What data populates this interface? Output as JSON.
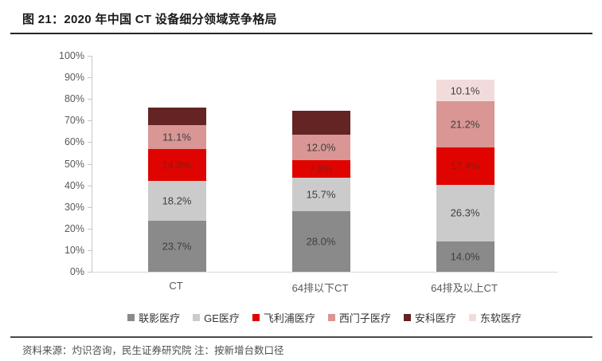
{
  "header": {
    "title": "图 21：2020 年中国 CT 设备细分领域竞争格局"
  },
  "footer": {
    "source": "资料来源：灼识咨询，民生证券研究院 注：按新增台数口径"
  },
  "chart_data": {
    "type": "bar",
    "stacked": true,
    "title": "2020 年中国 CT 设备细分领域竞争格局",
    "categories": [
      "CT",
      "64排以下CT",
      "64排及以上CT"
    ],
    "series": [
      {
        "name": "联影医疗",
        "color": "#8a8a8a",
        "label_color": "#3f3f3f",
        "values": [
          23.7,
          28.0,
          14.0
        ],
        "labels": [
          "23.7%",
          "28.0%",
          "14.0%"
        ]
      },
      {
        "name": "GE医疗",
        "color": "#cbcbcb",
        "label_color": "#3f3f3f",
        "values": [
          18.2,
          15.7,
          26.3
        ],
        "labels": [
          "18.2%",
          "15.7%",
          "26.3%"
        ]
      },
      {
        "name": "飞利浦医疗",
        "color": "#e00400",
        "label_color": "#8b1a12",
        "values": [
          14.8,
          7.8,
          17.4
        ],
        "labels": [
          "14.8%",
          "7.8%",
          "17.4%"
        ]
      },
      {
        "name": "西门子医疗",
        "color": "#d99694",
        "label_color": "#3f3f3f",
        "values": [
          11.1,
          12.0,
          21.2
        ],
        "labels": [
          "11.1%",
          "12.0%",
          "21.2%"
        ]
      },
      {
        "name": "安科医疗",
        "color": "#632423",
        "label_color": "#3f3f3f",
        "values": [
          8.2,
          11.1,
          0
        ],
        "labels": [
          "",
          "",
          ""
        ]
      },
      {
        "name": "东软医疗",
        "color": "#f2dcdb",
        "label_color": "#3f3f3f",
        "values": [
          0,
          0,
          10.1
        ],
        "labels": [
          "",
          "",
          "10.1%"
        ]
      }
    ],
    "ylabel": "",
    "xlabel": "",
    "ylim": [
      0,
      100
    ],
    "yticks": [
      "100%",
      "90%",
      "80%",
      "70%",
      "60%",
      "50%",
      "40%",
      "30%",
      "20%",
      "10%",
      "0%"
    ],
    "grid": false,
    "legend_position": "bottom"
  }
}
